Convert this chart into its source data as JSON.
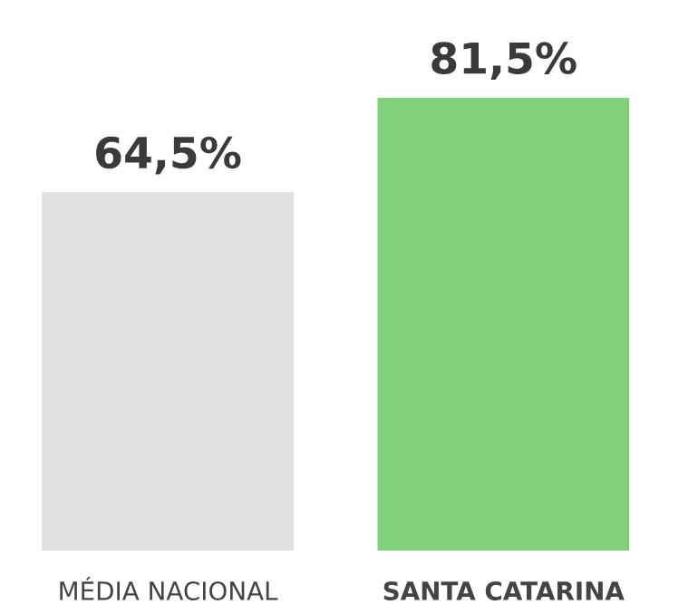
{
  "chart_data": {
    "type": "bar",
    "categories": [
      "MÉDIA NACIONAL",
      "SANTA CATARINA"
    ],
    "values": [
      64.5,
      81.5
    ],
    "colors": [
      "#e0e0e0",
      "#80d17a"
    ],
    "value_labels": [
      "64,5%",
      "81,5%"
    ],
    "grid": false,
    "legend": false
  }
}
